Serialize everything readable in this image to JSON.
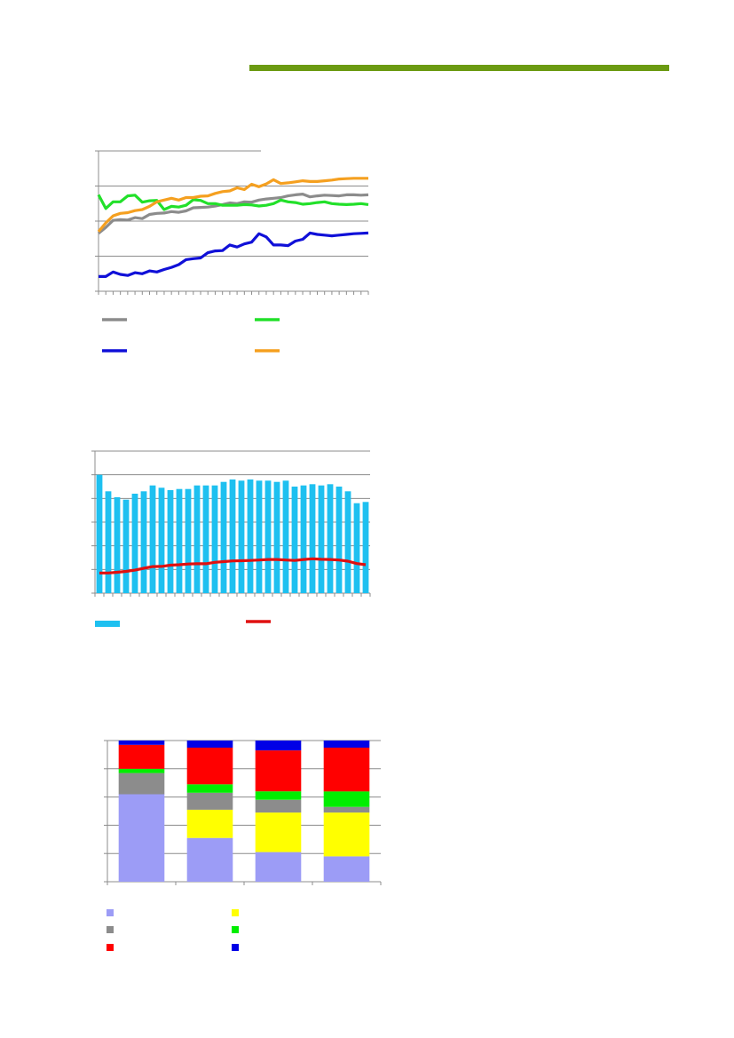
{
  "theme": {
    "header_bar_color": "#6b9a12",
    "grid_color": "#8c8c8c",
    "axis_color": "#8c8c8c"
  },
  "chart_data": [
    {
      "type": "line",
      "x": [
        1,
        2,
        3,
        4,
        5,
        6,
        7,
        8,
        9,
        10,
        11,
        12,
        13,
        14,
        15,
        16,
        17,
        18,
        19,
        20,
        21,
        22,
        23,
        24,
        25,
        26,
        27,
        28,
        29,
        30,
        31,
        32,
        33,
        34,
        35,
        36,
        37,
        38
      ],
      "ylim": [
        0,
        4
      ],
      "grid": true,
      "legend": "bottom",
      "series": [
        {
          "color": "#8c8c8c",
          "values": [
            1.65,
            1.82,
            2.02,
            2.04,
            2.03,
            2.1,
            2.07,
            2.19,
            2.22,
            2.23,
            2.27,
            2.25,
            2.29,
            2.38,
            2.39,
            2.4,
            2.43,
            2.47,
            2.52,
            2.5,
            2.55,
            2.54,
            2.6,
            2.63,
            2.65,
            2.67,
            2.72,
            2.75,
            2.77,
            2.69,
            2.72,
            2.74,
            2.73,
            2.72,
            2.75,
            2.75,
            2.74,
            2.75
          ]
        },
        {
          "color": "#22e02a",
          "values": [
            2.75,
            2.36,
            2.55,
            2.55,
            2.72,
            2.74,
            2.54,
            2.58,
            2.59,
            2.33,
            2.42,
            2.4,
            2.45,
            2.61,
            2.59,
            2.5,
            2.5,
            2.45,
            2.45,
            2.45,
            2.47,
            2.46,
            2.43,
            2.45,
            2.5,
            2.6,
            2.55,
            2.53,
            2.48,
            2.5,
            2.53,
            2.55,
            2.5,
            2.48,
            2.47,
            2.48,
            2.5,
            2.47
          ]
        },
        {
          "color": "#1010d8",
          "values": [
            0.42,
            0.42,
            0.55,
            0.48,
            0.45,
            0.53,
            0.5,
            0.58,
            0.55,
            0.62,
            0.68,
            0.76,
            0.9,
            0.93,
            0.95,
            1.1,
            1.15,
            1.16,
            1.32,
            1.26,
            1.35,
            1.4,
            1.64,
            1.55,
            1.32,
            1.32,
            1.3,
            1.43,
            1.48,
            1.66,
            1.62,
            1.6,
            1.58,
            1.6,
            1.62,
            1.64,
            1.65,
            1.66
          ]
        },
        {
          "color": "#f5a020",
          "values": [
            1.7,
            1.95,
            2.15,
            2.22,
            2.24,
            2.3,
            2.33,
            2.42,
            2.55,
            2.6,
            2.65,
            2.6,
            2.67,
            2.67,
            2.71,
            2.72,
            2.79,
            2.84,
            2.86,
            2.95,
            2.9,
            3.05,
            2.98,
            3.06,
            3.18,
            3.07,
            3.09,
            3.12,
            3.15,
            3.13,
            3.13,
            3.15,
            3.17,
            3.2,
            3.21,
            3.22,
            3.22,
            3.22
          ]
        }
      ]
    },
    {
      "type": "bar",
      "x": [
        1,
        2,
        3,
        4,
        5,
        6,
        7,
        8,
        9,
        10,
        11,
        12,
        13,
        14,
        15,
        16,
        17,
        18,
        19,
        20,
        21,
        22,
        23,
        24,
        25,
        26,
        27,
        28,
        29,
        30,
        31
      ],
      "ylim": [
        0,
        6
      ],
      "grid": true,
      "legend": "bottom",
      "series": [
        {
          "color": "#1ec0f0",
          "values": [
            5.0,
            4.3,
            4.05,
            3.95,
            4.2,
            4.3,
            4.55,
            4.45,
            4.35,
            4.4,
            4.4,
            4.55,
            4.55,
            4.55,
            4.7,
            4.8,
            4.75,
            4.8,
            4.75,
            4.75,
            4.7,
            4.75,
            4.5,
            4.55,
            4.6,
            4.55,
            4.6,
            4.5,
            4.3,
            3.8,
            3.85
          ]
        },
        {
          "type": "line",
          "color": "#e01010",
          "values": [
            0.85,
            0.85,
            0.88,
            0.92,
            0.97,
            1.05,
            1.12,
            1.13,
            1.18,
            1.2,
            1.23,
            1.24,
            1.24,
            1.3,
            1.33,
            1.36,
            1.37,
            1.38,
            1.4,
            1.42,
            1.42,
            1.4,
            1.38,
            1.42,
            1.45,
            1.43,
            1.42,
            1.4,
            1.35,
            1.25,
            1.2
          ]
        }
      ]
    },
    {
      "type": "bar",
      "stacked": true,
      "x": [
        1,
        2,
        3,
        4
      ],
      "ylim": [
        0,
        100
      ],
      "grid": true,
      "legend": "bottom",
      "series": [
        {
          "color": "#9c9cf6",
          "values": [
            62,
            31,
            21,
            18
          ]
        },
        {
          "color": "#ffff00",
          "values": [
            0,
            20,
            28,
            31
          ]
        },
        {
          "color": "#8c8c8c",
          "values": [
            15,
            12,
            9,
            4
          ]
        },
        {
          "color": "#00ee00",
          "values": [
            3,
            6,
            6,
            11
          ]
        },
        {
          "color": "#ff0000",
          "values": [
            17,
            26,
            29,
            31
          ]
        },
        {
          "color": "#0000e6",
          "values": [
            3,
            5,
            7,
            5
          ]
        }
      ]
    }
  ]
}
